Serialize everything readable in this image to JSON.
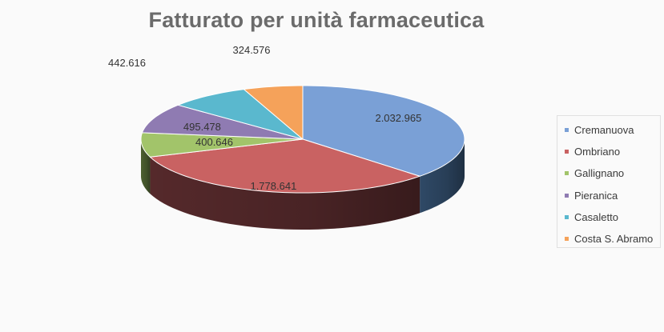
{
  "chart_data": {
    "type": "pie",
    "title": "Fatturato  per unità farmaceutica",
    "legend_position": "right",
    "categories": [
      "Cremanuova",
      "Ombriano",
      "Gallignano",
      "Pieranica",
      "Casaletto",
      "Costa S. Abramo"
    ],
    "values": [
      2032965,
      1778641,
      400646,
      495478,
      442616,
      324576
    ],
    "value_labels": [
      "2.032.965",
      "1.778.641",
      "400.646",
      "495.478",
      "442.616",
      "324.576"
    ],
    "colors": [
      "#7aa0d6",
      "#c96262",
      "#a2c46a",
      "#8f7bb2",
      "#5ab8ce",
      "#f5a25a"
    ],
    "side_colors": [
      "#2f4966",
      "#55292b",
      "#4c6030",
      "#3f3354",
      "#2c5765",
      "#7a4f2a"
    ]
  }
}
